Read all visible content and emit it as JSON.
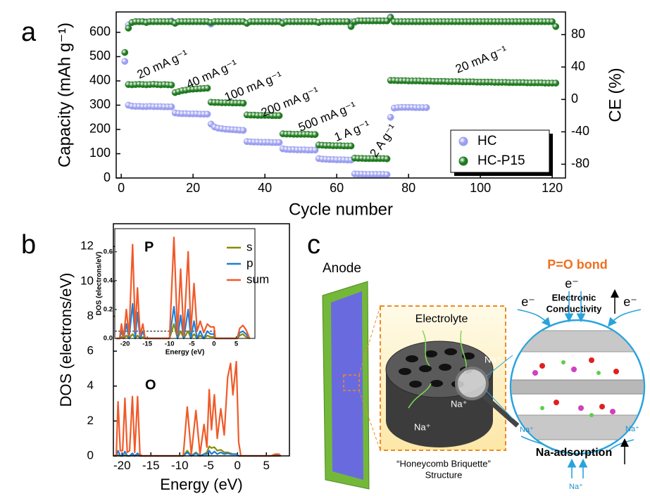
{
  "panel_labels": [
    "a",
    "b",
    "c"
  ],
  "chart_data": [
    {
      "type": "scatter",
      "xlabel": "Cycle number",
      "ylabel": "Capacity (mAh g⁻¹)",
      "y2label": "CE (%)",
      "xlim": [
        -1.4,
        123.7
      ],
      "ylim": [
        0,
        684
      ],
      "y2lim": [
        -97,
        108
      ],
      "xticks": [
        0,
        20,
        40,
        60,
        80,
        100,
        120
      ],
      "yticks": [
        0,
        100,
        200,
        300,
        400,
        500,
        600
      ],
      "y2ticks": [
        -80,
        -40,
        0,
        40,
        80
      ],
      "legend": "lower right",
      "annotations": [
        "20 mA g⁻¹",
        "40 mA g⁻¹",
        "100 mA g⁻¹",
        "200 mA g⁻¹",
        "500 mA g⁻¹",
        "1 A g⁻¹",
        "2 A g⁻¹",
        "20 mA g⁻¹"
      ],
      "x": [
        1,
        2,
        3,
        4,
        5,
        6,
        7,
        8,
        9,
        10,
        11,
        12,
        13,
        14,
        15,
        16,
        17,
        18,
        19,
        20,
        21,
        22,
        23,
        24,
        25,
        26,
        27,
        28,
        29,
        30,
        31,
        32,
        33,
        34,
        35,
        36,
        37,
        38,
        39,
        40,
        41,
        42,
        43,
        44,
        45,
        46,
        47,
        48,
        49,
        50,
        51,
        52,
        53,
        54,
        55,
        56,
        57,
        58,
        59,
        60,
        61,
        62,
        63,
        64,
        65,
        66,
        67,
        68,
        69,
        70,
        71,
        72,
        73,
        74,
        75,
        76,
        77,
        78,
        79,
        80,
        81,
        82,
        83,
        84,
        85,
        86,
        87,
        88,
        89,
        90,
        91,
        92,
        93,
        94,
        95,
        96,
        97,
        98,
        99,
        100,
        101,
        102,
        103,
        104,
        105,
        106,
        107,
        108,
        109,
        110,
        111,
        112,
        113,
        114,
        115,
        116,
        117,
        118,
        119,
        120,
        121
      ],
      "series": [
        {
          "name": "HC",
          "color": "#9a9ef0",
          "values": [
            null,
            300,
            296,
            295,
            295,
            294,
            294,
            295,
            294,
            294,
            294,
            293,
            293,
            293,
            268,
            266,
            265,
            265,
            264,
            264,
            264,
            263,
            263,
            263,
            222,
            210,
            205,
            203,
            201,
            200,
            199,
            198,
            197,
            196,
            150,
            149,
            148,
            148,
            147,
            147,
            147,
            146,
            146,
            146,
            120,
            118,
            117,
            117,
            116,
            116,
            116,
            115,
            115,
            115,
            80,
            78,
            77,
            76,
            76,
            75,
            75,
            75,
            74,
            74,
            17,
            16,
            16,
            15,
            15,
            15,
            15,
            15,
            15,
            14,
            250,
            288,
            290,
            291,
            291,
            291,
            291,
            290,
            290,
            290,
            290,
            null,
            null,
            null,
            null,
            null,
            null,
            null,
            null,
            null,
            null,
            null,
            null,
            null,
            null,
            null,
            null,
            null,
            null,
            null,
            null,
            null,
            null,
            null,
            null,
            null,
            null,
            null,
            null,
            null,
            null,
            null,
            null,
            null,
            null,
            null,
            null
          ]
        },
        {
          "name": "HC-P15",
          "color": "#1f7a1f",
          "values": [
            null,
            385,
            384,
            385,
            386,
            385,
            384,
            385,
            386,
            385,
            384,
            385,
            384,
            383,
            352,
            356,
            360,
            362,
            365,
            366,
            367,
            368,
            369,
            370,
            312,
            311,
            311,
            310,
            310,
            310,
            309,
            309,
            309,
            308,
            260,
            259,
            259,
            258,
            258,
            258,
            258,
            257,
            257,
            257,
            182,
            181,
            181,
            180,
            180,
            180,
            180,
            180,
            179,
            179,
            136,
            135,
            134,
            134,
            133,
            133,
            133,
            132,
            132,
            132,
            82,
            81,
            81,
            80,
            80,
            80,
            80,
            80,
            80,
            79,
            402,
            402,
            401,
            401,
            401,
            400,
            400,
            400,
            400,
            399,
            399,
            399,
            398,
            398,
            398,
            398,
            397,
            397,
            397,
            397,
            396,
            396,
            396,
            396,
            395,
            395,
            395,
            395,
            395,
            394,
            394,
            394,
            394,
            393,
            393,
            393,
            393,
            393,
            392,
            392,
            392,
            392,
            392,
            391,
            391,
            391,
            391
          ]
        },
        {
          "axis": "y2",
          "color": "#9a9ef0",
          "values": [
            47,
            92,
            95,
            96,
            96,
            96,
            96,
            96,
            96,
            96,
            96,
            96,
            96,
            97,
            95,
            96,
            96,
            96,
            96,
            96,
            96,
            96,
            96,
            96,
            93,
            96,
            96,
            96,
            96,
            96,
            96,
            96,
            96,
            96,
            94,
            96,
            96,
            96,
            96,
            96,
            96,
            96,
            96,
            96,
            96,
            96,
            96,
            96,
            96,
            96,
            96,
            96,
            96,
            96,
            95,
            96,
            96,
            96,
            96,
            96,
            96,
            96,
            96,
            96,
            95,
            97,
            97,
            97,
            97,
            97,
            97,
            97,
            97,
            97,
            102,
            96,
            96,
            96,
            96,
            96,
            96,
            96,
            96,
            96,
            96,
            null,
            null,
            null,
            null,
            null,
            null,
            null,
            null,
            null,
            null,
            null,
            null,
            null,
            null,
            null,
            null,
            null,
            null,
            null,
            null,
            null,
            null,
            null,
            null,
            null,
            null,
            null,
            null,
            null,
            null,
            null,
            null,
            null,
            null,
            null,
            null
          ]
        },
        {
          "axis": "y2",
          "color": "#1f7a1f",
          "values": [
            58,
            88,
            95,
            96,
            96,
            96,
            95,
            96,
            96,
            96,
            96,
            96,
            96,
            96,
            94,
            96,
            96,
            96,
            96,
            96,
            96,
            96,
            96,
            96,
            95,
            96,
            96,
            96,
            96,
            96,
            96,
            96,
            96,
            96,
            94,
            96,
            96,
            96,
            96,
            96,
            96,
            96,
            96,
            96,
            94,
            96,
            96,
            96,
            96,
            96,
            96,
            96,
            96,
            96,
            95,
            96,
            96,
            96,
            96,
            96,
            96,
            96,
            96,
            90,
            96,
            97,
            97,
            97,
            97,
            97,
            97,
            97,
            97,
            97,
            101,
            96,
            96,
            96,
            96,
            96,
            96,
            96,
            96,
            96,
            96,
            96,
            96,
            96,
            96,
            96,
            96,
            96,
            96,
            96,
            96,
            96,
            96,
            96,
            96,
            96,
            96,
            96,
            96,
            96,
            96,
            96,
            96,
            96,
            96,
            96,
            96,
            96,
            96,
            96,
            96,
            96,
            96,
            96,
            96,
            96,
            90
          ]
        }
      ]
    },
    {
      "type": "line",
      "xlabel": "Energy (eV)",
      "ylabel": "DOS (electrons/eV)",
      "xlim": [
        -21.5,
        9
      ],
      "ylim": [
        0,
        13.3
      ],
      "xticks": [
        -20,
        -15,
        -10,
        -5,
        0,
        5
      ],
      "yticks": [
        0,
        2,
        4,
        6,
        8,
        10,
        12
      ],
      "legend": "upper right",
      "annotations": [
        "O"
      ],
      "x": [
        -21.5,
        -21.0,
        -20.7,
        -20.3,
        -19.9,
        -19.5,
        -19.1,
        -18.7,
        -18.2,
        -17.8,
        -17.3,
        -16.9,
        -16.5,
        -9.4,
        -8.7,
        -8.0,
        -7.2,
        -6.5,
        -5.8,
        -5.3,
        -4.9,
        -4.5,
        -4.0,
        -3.5,
        -2.9,
        -2.3,
        -1.7,
        -1.2,
        -0.8,
        -0.2,
        0.2,
        0.6,
        5.8,
        6.5,
        7.2,
        7.5
      ],
      "series": [
        {
          "name": "s",
          "color": "#8a8a00",
          "values": [
            0,
            0,
            0.05,
            0,
            0,
            0.05,
            0,
            0,
            0.05,
            0,
            0.05,
            0,
            0,
            0,
            0.3,
            0,
            0.2,
            0,
            0.1,
            0.2,
            0.55,
            0.45,
            0.5,
            0.3,
            0.35,
            0.2,
            0.2,
            0.15,
            0.1,
            0.1,
            0,
            0,
            0,
            0,
            0,
            0
          ]
        },
        {
          "name": "p",
          "color": "#1f7fd8",
          "values": [
            0,
            0,
            0.3,
            0,
            0,
            0.25,
            0,
            0,
            0.15,
            0,
            0.15,
            0,
            0,
            0,
            0.2,
            0,
            0.15,
            0,
            0.1,
            0.1,
            0.3,
            0.1,
            0.25,
            0.1,
            0.2,
            0.1,
            0.15,
            0.1,
            0.1,
            0.1,
            0,
            0,
            0,
            0.05,
            0.05,
            0
          ]
        },
        {
          "name": "sum",
          "color": "#f05a28",
          "values": [
            0,
            0.05,
            3.1,
            0.3,
            0.3,
            3.3,
            0.2,
            0.3,
            3.4,
            0.2,
            3.4,
            0.1,
            0,
            0,
            2.8,
            0.1,
            2.6,
            0.1,
            1.8,
            0.5,
            3.8,
            1.5,
            3.5,
            1.0,
            2.7,
            1.2,
            4.5,
            5.3,
            3.5,
            5.4,
            0.8,
            0,
            0,
            0.1,
            0.1,
            0
          ]
        }
      ]
    },
    {
      "type": "line",
      "xlabel": "Energy (eV)",
      "ylabel": "DOS (electrons/eV)",
      "xlim": [
        -22.3,
        9.2
      ],
      "ylim": [
        0,
        0.76
      ],
      "xticks": [
        -20,
        -15,
        -10,
        -5,
        0,
        5
      ],
      "yticks": [
        {
          "value": 0,
          "label": "0.0"
        },
        0.2,
        0.4,
        0.6
      ],
      "annotations": [
        "P"
      ],
      "x": [
        -22,
        -21.2,
        -20.8,
        -20.3,
        -19.7,
        -19.1,
        -18.3,
        -17.7,
        -17.2,
        -16.6,
        -16.0,
        -15.5,
        -10,
        -9.0,
        -8.2,
        -7.5,
        -6.8,
        -5.8,
        -5.2,
        -4.5,
        -3.8,
        -3.1,
        -2.3,
        -1.5,
        -0.8,
        0,
        0.3,
        5.2,
        5.8,
        6.5,
        7.2,
        8
      ],
      "series": [
        {
          "color": "#8a8a00",
          "values": [
            0,
            0,
            0.01,
            0,
            0.02,
            0,
            0.03,
            0,
            0.02,
            0,
            0.01,
            0,
            0,
            0.1,
            0,
            0.05,
            0,
            0.05,
            0,
            0.03,
            0,
            0.02,
            0,
            0.02,
            0.01,
            0.01,
            0,
            0,
            0.02,
            0.03,
            0.01,
            0
          ]
        },
        {
          "color": "#1f7fd8",
          "values": [
            0,
            0,
            0.05,
            0,
            0.1,
            0,
            0.24,
            0,
            0.18,
            0,
            0.05,
            0,
            0,
            0.22,
            0,
            0.16,
            0,
            0.2,
            0,
            0.12,
            0,
            0.05,
            0,
            0.05,
            0.03,
            0.03,
            0,
            0,
            0.04,
            0.05,
            0.03,
            0
          ]
        },
        {
          "color": "#f05a28",
          "values": [
            0,
            0,
            0.1,
            0,
            0.2,
            0.02,
            0.65,
            0.05,
            0.35,
            0.02,
            0.1,
            0,
            0,
            0.7,
            0.03,
            0.48,
            0.02,
            0.6,
            0.05,
            0.38,
            0.05,
            0.12,
            0.04,
            0.1,
            0.08,
            0.08,
            0,
            0,
            0.07,
            0.09,
            0.06,
            0
          ]
        }
      ]
    }
  ],
  "diagram": {
    "anode": "Anode",
    "electrolyte": "Electrolyte",
    "sodium_ions": [
      "Na⁺",
      "Na⁺",
      "Na⁺"
    ],
    "structure": [
      "“Honeycomb Briquette”",
      "Structure"
    ],
    "bond": "P=O bond",
    "electrons": [
      "e⁻",
      "e⁻",
      "e⁻"
    ],
    "conductivity": [
      "Electronic",
      "Conductivity"
    ],
    "adsorption": "Na-adsorption",
    "adsorbed_ions": [
      "Na⁺",
      "Na⁺",
      "Na⁺"
    ]
  }
}
